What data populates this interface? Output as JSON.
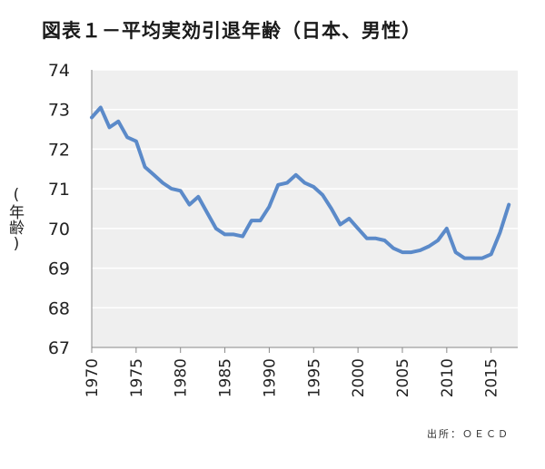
{
  "title": "図表１－平均実効引退年齢（日本、男性）",
  "source": "出所：ＯＥＣＤ",
  "colors": {
    "line": "#5b8ac9",
    "plot_bg": "#efefef",
    "grid": "#ffffff",
    "axis": "#888888"
  },
  "chart_data": {
    "type": "line",
    "title": "図表１－平均実効引退年齢（日本、男性）",
    "ylabel": "年齢",
    "xlabel": "",
    "ylim": [
      67,
      74
    ],
    "xlim": [
      1970,
      2018
    ],
    "yticks": [
      67,
      68,
      69,
      70,
      71,
      72,
      73,
      74
    ],
    "xticks": [
      1970,
      1975,
      1980,
      1985,
      1990,
      1995,
      2000,
      2005,
      2010,
      2015
    ],
    "grid": true,
    "series": [
      {
        "name": "平均実効引退年齢（日本、男性）",
        "x": [
          1970,
          1971,
          1972,
          1973,
          1974,
          1975,
          1976,
          1977,
          1978,
          1979,
          1980,
          1981,
          1982,
          1983,
          1984,
          1985,
          1986,
          1987,
          1988,
          1989,
          1990,
          1991,
          1992,
          1993,
          1994,
          1995,
          1996,
          1997,
          1998,
          1999,
          2000,
          2001,
          2002,
          2003,
          2004,
          2005,
          2006,
          2007,
          2008,
          2009,
          2010,
          2011,
          2012,
          2013,
          2014,
          2015,
          2016,
          2017
        ],
        "values": [
          72.8,
          73.05,
          72.55,
          72.7,
          72.3,
          72.2,
          71.55,
          71.35,
          71.15,
          71.0,
          70.95,
          70.6,
          70.8,
          70.4,
          70.0,
          69.85,
          69.85,
          69.8,
          70.2,
          70.2,
          70.55,
          71.1,
          71.15,
          71.35,
          71.15,
          71.05,
          70.85,
          70.5,
          70.1,
          70.25,
          70.0,
          69.75,
          69.75,
          69.7,
          69.5,
          69.4,
          69.4,
          69.45,
          69.55,
          69.7,
          70.0,
          69.4,
          69.25,
          69.25,
          69.25,
          69.35,
          69.9,
          70.6
        ]
      }
    ]
  }
}
